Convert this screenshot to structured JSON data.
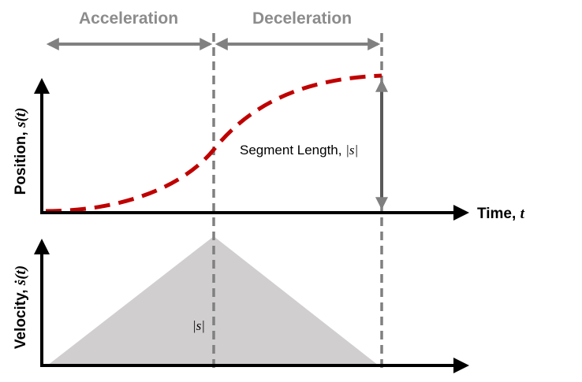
{
  "phases": {
    "acceleration": "Acceleration",
    "deceleration": "Deceleration"
  },
  "axes": {
    "position_label": "Position, ",
    "position_symbol": "s(t)",
    "velocity_label": "Velocity, ",
    "velocity_symbol": "ṡ(t)",
    "time_label": "Time, ",
    "time_symbol": "t"
  },
  "annotations": {
    "segment_length_label": "Segment Length, ",
    "segment_length_symbol": "|s|",
    "area_symbol": "|s|"
  },
  "colors": {
    "curve": "#c00000",
    "phase_arrows": "#808080",
    "dashed_lines": "#808080",
    "triangle_fill": "#d0cece",
    "axes": "#000000"
  }
}
